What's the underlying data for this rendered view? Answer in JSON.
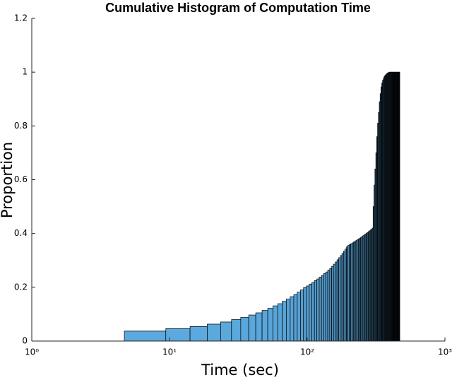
{
  "chart_data": {
    "type": "histogram",
    "title": "Cumulative Histogram of Computation Time",
    "xlabel": "Time (sec)",
    "ylabel": "Proportion",
    "xscale": "log",
    "xlim": [
      1,
      1000
    ],
    "xticks": [
      {
        "value": 1,
        "label": "10⁰"
      },
      {
        "value": 10,
        "label": "10¹"
      },
      {
        "value": 100,
        "label": "10²"
      },
      {
        "value": 1000,
        "label": "10³"
      }
    ],
    "ylim": [
      0,
      1.2
    ],
    "yticks": [
      0,
      0.2,
      0.4,
      0.6,
      0.8,
      1,
      1.2
    ],
    "colors": [
      "#5ba9de",
      "#10181f"
    ],
    "bins": [
      4.7,
      9.4,
      14.1,
      18.8,
      23.5,
      28.2,
      32.9,
      37.6,
      42.3,
      47,
      51.7,
      56.4,
      61.1,
      65.8,
      70.5,
      75.2,
      79.9,
      84.6,
      89.3,
      94,
      98.7,
      103.4,
      108.1,
      112.8,
      117.5,
      122.2,
      126.9,
      131.6,
      136.3,
      141,
      145.7,
      150.4,
      155.1,
      159.8,
      164.5,
      169.2,
      173.9,
      178.6,
      183.3,
      188,
      192.7,
      197.4,
      202.1,
      206.8,
      211.5,
      216.2,
      220.9,
      225.6,
      230.3,
      235,
      239.7,
      244.4,
      249.1,
      253.8,
      258.5,
      263.2,
      267.9,
      272.6,
      277.3,
      282,
      286.7,
      291.4,
      296.1,
      300.8,
      305.5,
      310.2,
      314.9,
      319.6,
      324.3,
      329,
      333.7,
      338.4,
      343.1,
      347.8,
      352.5,
      357.2,
      361.9,
      366.6,
      371.3,
      376,
      380.7,
      385.4,
      390.1,
      394.8,
      399.5,
      404.2,
      408.9,
      413.6,
      418.3,
      423,
      427.7,
      432.4,
      437.1,
      441.8,
      446.5,
      451.2,
      455.9,
      460.6,
      465.3,
      470
    ],
    "values": [
      0.037,
      0.046,
      0.054,
      0.063,
      0.071,
      0.08,
      0.088,
      0.097,
      0.105,
      0.114,
      0.122,
      0.131,
      0.139,
      0.148,
      0.156,
      0.165,
      0.173,
      0.182,
      0.19,
      0.199,
      0.205,
      0.212,
      0.218,
      0.225,
      0.231,
      0.238,
      0.244,
      0.251,
      0.257,
      0.264,
      0.27,
      0.278,
      0.286,
      0.294,
      0.302,
      0.31,
      0.318,
      0.326,
      0.334,
      0.342,
      0.35,
      0.356,
      0.359,
      0.362,
      0.365,
      0.368,
      0.371,
      0.374,
      0.377,
      0.38,
      0.383,
      0.386,
      0.389,
      0.392,
      0.395,
      0.398,
      0.401,
      0.404,
      0.407,
      0.41,
      0.413,
      0.416,
      0.42,
      0.5,
      0.58,
      0.64,
      0.7,
      0.76,
      0.81,
      0.85,
      0.89,
      0.92,
      0.945,
      0.96,
      0.97,
      0.978,
      0.984,
      0.988,
      0.991,
      0.994,
      0.996,
      0.998,
      0.999,
      1,
      1,
      1,
      1,
      1,
      1,
      1,
      1,
      1,
      1,
      1,
      1,
      1,
      1,
      1,
      1
    ]
  }
}
